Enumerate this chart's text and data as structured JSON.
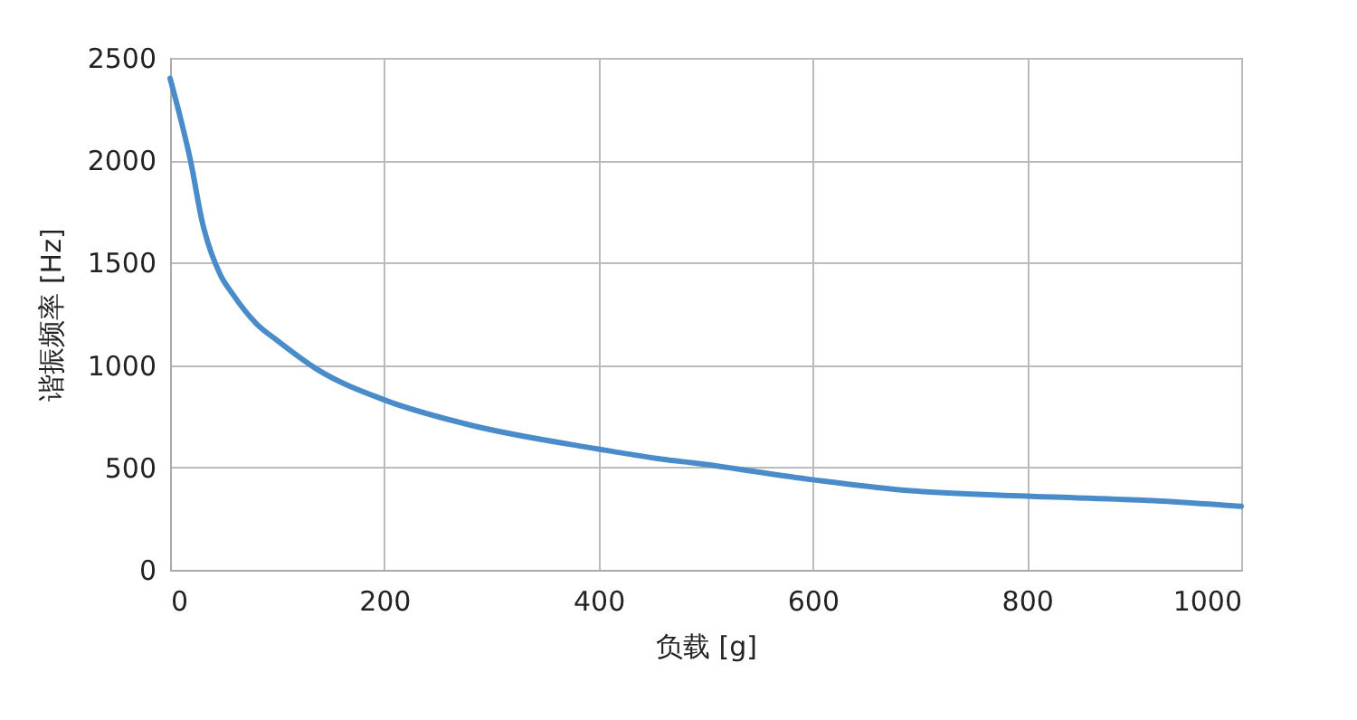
{
  "chart_data": {
    "type": "line",
    "xlabel": "负载 [g]",
    "ylabel": "谐振频率 [Hz]",
    "x": [
      0,
      10,
      19,
      30,
      47,
      58,
      81,
      100,
      137,
      200,
      278,
      400,
      460,
      492,
      600,
      683,
      800,
      909,
      1000
    ],
    "series": [
      {
        "color": "#4a8bc9",
        "values": [
          2400,
          2200,
          2000,
          1700,
          1440,
          1350,
          1200,
          1120,
          980,
          830,
          710,
          590,
          540,
          520,
          440,
          390,
          360,
          340,
          310
        ]
      }
    ],
    "xlim": [
      0,
      1000
    ],
    "xticks": [
      0,
      200,
      400,
      600,
      800,
      1000
    ],
    "ylim": [
      0,
      2500
    ],
    "yticks": [
      0,
      500,
      1000,
      1500,
      2000,
      2500
    ],
    "grid": true,
    "marker": "none",
    "line_style": "solid"
  }
}
